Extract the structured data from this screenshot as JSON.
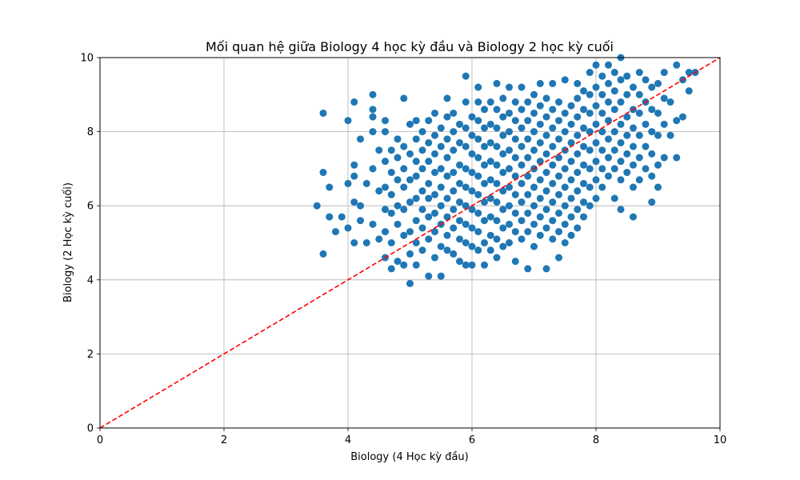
{
  "chart_data": {
    "type": "scatter",
    "title": "Mối quan hệ giữa Biology 4 học kỳ đầu và Biology 2 học kỳ cuối",
    "xlabel": "Biology (4 Học kỳ đầu)",
    "ylabel": "Biology (2 Học kỳ cuối)",
    "xlim": [
      0,
      10
    ],
    "ylim": [
      0,
      10
    ],
    "xticks": [
      "0",
      "2",
      "4",
      "6",
      "8",
      "10"
    ],
    "yticks": [
      "0",
      "2",
      "4",
      "6",
      "8",
      "10"
    ],
    "grid": true,
    "point_color": "#1f77b4",
    "reference_line": {
      "style": "dashed",
      "color": "#ff0000",
      "from": [
        0,
        0
      ],
      "to": [
        10,
        10
      ]
    },
    "points": [
      [
        3.5,
        6.0
      ],
      [
        3.6,
        4.7
      ],
      [
        3.6,
        6.9
      ],
      [
        3.6,
        8.5
      ],
      [
        3.7,
        5.7
      ],
      [
        3.7,
        6.5
      ],
      [
        3.8,
        5.3
      ],
      [
        3.9,
        5.7
      ],
      [
        4.0,
        5.4
      ],
      [
        4.0,
        6.6
      ],
      [
        4.0,
        8.3
      ],
      [
        4.1,
        5.0
      ],
      [
        4.1,
        6.1
      ],
      [
        4.1,
        6.8
      ],
      [
        4.1,
        7.1
      ],
      [
        4.1,
        8.8
      ],
      [
        4.2,
        5.6
      ],
      [
        4.2,
        6.0
      ],
      [
        4.2,
        7.8
      ],
      [
        4.3,
        5.0
      ],
      [
        4.3,
        6.6
      ],
      [
        4.4,
        5.5
      ],
      [
        4.4,
        7.0
      ],
      [
        4.4,
        8.0
      ],
      [
        4.4,
        8.4
      ],
      [
        4.4,
        8.6
      ],
      [
        4.4,
        9.0
      ],
      [
        4.5,
        5.1
      ],
      [
        4.5,
        6.4
      ],
      [
        4.5,
        7.5
      ],
      [
        4.6,
        4.6
      ],
      [
        4.6,
        5.3
      ],
      [
        4.6,
        5.9
      ],
      [
        4.6,
        6.5
      ],
      [
        4.6,
        7.2
      ],
      [
        4.6,
        8.0
      ],
      [
        4.6,
        8.3
      ],
      [
        4.7,
        4.3
      ],
      [
        4.7,
        5.0
      ],
      [
        4.7,
        5.8
      ],
      [
        4.7,
        6.3
      ],
      [
        4.7,
        6.9
      ],
      [
        4.7,
        7.5
      ],
      [
        4.8,
        4.5
      ],
      [
        4.8,
        5.5
      ],
      [
        4.8,
        6.0
      ],
      [
        4.8,
        6.7
      ],
      [
        4.8,
        7.3
      ],
      [
        4.8,
        7.8
      ],
      [
        4.9,
        4.4
      ],
      [
        4.9,
        5.2
      ],
      [
        4.9,
        5.9
      ],
      [
        4.9,
        6.5
      ],
      [
        4.9,
        7.0
      ],
      [
        4.9,
        7.6
      ],
      [
        4.9,
        8.9
      ],
      [
        5.0,
        3.9
      ],
      [
        5.0,
        4.7
      ],
      [
        5.0,
        5.3
      ],
      [
        5.0,
        6.1
      ],
      [
        5.0,
        6.7
      ],
      [
        5.0,
        7.4
      ],
      [
        5.0,
        8.2
      ],
      [
        5.1,
        4.4
      ],
      [
        5.1,
        5.0
      ],
      [
        5.1,
        5.6
      ],
      [
        5.1,
        6.2
      ],
      [
        5.1,
        6.8
      ],
      [
        5.1,
        7.2
      ],
      [
        5.1,
        7.8
      ],
      [
        5.1,
        8.3
      ],
      [
        5.2,
        4.8
      ],
      [
        5.2,
        5.4
      ],
      [
        5.2,
        5.9
      ],
      [
        5.2,
        6.4
      ],
      [
        5.2,
        7.0
      ],
      [
        5.2,
        7.5
      ],
      [
        5.2,
        8.0
      ],
      [
        5.3,
        4.1
      ],
      [
        5.3,
        5.1
      ],
      [
        5.3,
        5.7
      ],
      [
        5.3,
        6.2
      ],
      [
        5.3,
        6.6
      ],
      [
        5.3,
        7.2
      ],
      [
        5.3,
        7.7
      ],
      [
        5.3,
        8.3
      ],
      [
        5.4,
        4.6
      ],
      [
        5.4,
        5.3
      ],
      [
        5.4,
        5.8
      ],
      [
        5.4,
        6.3
      ],
      [
        5.4,
        6.9
      ],
      [
        5.4,
        7.4
      ],
      [
        5.4,
        7.9
      ],
      [
        5.4,
        8.5
      ],
      [
        5.5,
        4.1
      ],
      [
        5.5,
        4.9
      ],
      [
        5.5,
        5.5
      ],
      [
        5.5,
        6.0
      ],
      [
        5.5,
        6.5
      ],
      [
        5.5,
        7.0
      ],
      [
        5.5,
        7.6
      ],
      [
        5.5,
        8.1
      ],
      [
        5.6,
        4.8
      ],
      [
        5.6,
        5.2
      ],
      [
        5.6,
        5.7
      ],
      [
        5.6,
        6.2
      ],
      [
        5.6,
        6.8
      ],
      [
        5.6,
        7.3
      ],
      [
        5.6,
        7.8
      ],
      [
        5.6,
        8.4
      ],
      [
        5.6,
        8.9
      ],
      [
        5.7,
        4.7
      ],
      [
        5.7,
        5.4
      ],
      [
        5.7,
        5.9
      ],
      [
        5.7,
        6.4
      ],
      [
        5.7,
        6.9
      ],
      [
        5.7,
        7.5
      ],
      [
        5.7,
        8.0
      ],
      [
        5.7,
        8.5
      ],
      [
        5.8,
        4.5
      ],
      [
        5.8,
        5.1
      ],
      [
        5.8,
        5.6
      ],
      [
        5.8,
        6.1
      ],
      [
        5.8,
        6.6
      ],
      [
        5.8,
        7.1
      ],
      [
        5.8,
        7.7
      ],
      [
        5.8,
        8.2
      ],
      [
        5.9,
        4.4
      ],
      [
        5.9,
        5.0
      ],
      [
        5.9,
        5.5
      ],
      [
        5.9,
        6.0
      ],
      [
        5.9,
        6.5
      ],
      [
        5.9,
        7.0
      ],
      [
        5.9,
        7.6
      ],
      [
        5.9,
        8.1
      ],
      [
        5.9,
        8.8
      ],
      [
        5.9,
        9.5
      ],
      [
        6.0,
        4.4
      ],
      [
        6.0,
        4.9
      ],
      [
        6.0,
        5.4
      ],
      [
        6.0,
        5.9
      ],
      [
        6.0,
        6.4
      ],
      [
        6.0,
        6.9
      ],
      [
        6.0,
        7.4
      ],
      [
        6.0,
        7.9
      ],
      [
        6.0,
        8.4
      ],
      [
        6.1,
        4.8
      ],
      [
        6.1,
        5.3
      ],
      [
        6.1,
        5.8
      ],
      [
        6.1,
        6.3
      ],
      [
        6.1,
        6.8
      ],
      [
        6.1,
        7.3
      ],
      [
        6.1,
        7.8
      ],
      [
        6.1,
        8.3
      ],
      [
        6.1,
        8.8
      ],
      [
        6.1,
        9.2
      ],
      [
        6.2,
        4.4
      ],
      [
        6.2,
        5.0
      ],
      [
        6.2,
        5.6
      ],
      [
        6.2,
        6.1
      ],
      [
        6.2,
        6.6
      ],
      [
        6.2,
        7.1
      ],
      [
        6.2,
        7.6
      ],
      [
        6.2,
        8.1
      ],
      [
        6.2,
        8.6
      ],
      [
        6.3,
        4.8
      ],
      [
        6.3,
        5.2
      ],
      [
        6.3,
        5.7
      ],
      [
        6.3,
        6.2
      ],
      [
        6.3,
        6.7
      ],
      [
        6.3,
        7.2
      ],
      [
        6.3,
        7.7
      ],
      [
        6.3,
        8.2
      ],
      [
        6.3,
        8.8
      ],
      [
        6.4,
        4.6
      ],
      [
        6.4,
        5.1
      ],
      [
        6.4,
        5.6
      ],
      [
        6.4,
        6.1
      ],
      [
        6.4,
        6.6
      ],
      [
        6.4,
        7.1
      ],
      [
        6.4,
        7.6
      ],
      [
        6.4,
        8.1
      ],
      [
        6.4,
        8.6
      ],
      [
        6.4,
        9.3
      ],
      [
        6.5,
        4.9
      ],
      [
        6.5,
        5.4
      ],
      [
        6.5,
        5.9
      ],
      [
        6.5,
        6.4
      ],
      [
        6.5,
        6.9
      ],
      [
        6.5,
        7.4
      ],
      [
        6.5,
        7.9
      ],
      [
        6.5,
        8.4
      ],
      [
        6.5,
        8.9
      ],
      [
        6.6,
        5.0
      ],
      [
        6.6,
        5.5
      ],
      [
        6.6,
        6.0
      ],
      [
        6.6,
        6.5
      ],
      [
        6.6,
        7.0
      ],
      [
        6.6,
        7.5
      ],
      [
        6.6,
        8.0
      ],
      [
        6.6,
        8.5
      ],
      [
        6.6,
        9.2
      ],
      [
        6.7,
        4.5
      ],
      [
        6.7,
        5.3
      ],
      [
        6.7,
        5.8
      ],
      [
        6.7,
        6.3
      ],
      [
        6.7,
        6.8
      ],
      [
        6.7,
        7.3
      ],
      [
        6.7,
        7.8
      ],
      [
        6.7,
        8.3
      ],
      [
        6.7,
        8.8
      ],
      [
        6.8,
        5.1
      ],
      [
        6.8,
        5.6
      ],
      [
        6.8,
        6.1
      ],
      [
        6.8,
        6.6
      ],
      [
        6.8,
        7.1
      ],
      [
        6.8,
        7.6
      ],
      [
        6.8,
        8.1
      ],
      [
        6.8,
        8.6
      ],
      [
        6.8,
        9.2
      ],
      [
        6.9,
        4.3
      ],
      [
        6.9,
        5.3
      ],
      [
        6.9,
        5.8
      ],
      [
        6.9,
        6.3
      ],
      [
        6.9,
        6.8
      ],
      [
        6.9,
        7.3
      ],
      [
        6.9,
        7.8
      ],
      [
        6.9,
        8.3
      ],
      [
        6.9,
        8.8
      ],
      [
        7.0,
        4.9
      ],
      [
        7.0,
        5.5
      ],
      [
        7.0,
        6.0
      ],
      [
        7.0,
        6.5
      ],
      [
        7.0,
        7.0
      ],
      [
        7.0,
        7.5
      ],
      [
        7.0,
        8.0
      ],
      [
        7.0,
        8.5
      ],
      [
        7.0,
        9.0
      ],
      [
        7.1,
        5.2
      ],
      [
        7.1,
        5.7
      ],
      [
        7.1,
        6.2
      ],
      [
        7.1,
        6.7
      ],
      [
        7.1,
        7.2
      ],
      [
        7.1,
        7.7
      ],
      [
        7.1,
        8.2
      ],
      [
        7.1,
        8.7
      ],
      [
        7.1,
        9.3
      ],
      [
        7.2,
        4.3
      ],
      [
        7.2,
        5.4
      ],
      [
        7.2,
        5.9
      ],
      [
        7.2,
        6.4
      ],
      [
        7.2,
        6.9
      ],
      [
        7.2,
        7.4
      ],
      [
        7.2,
        7.9
      ],
      [
        7.2,
        8.4
      ],
      [
        7.2,
        8.9
      ],
      [
        7.3,
        5.1
      ],
      [
        7.3,
        5.6
      ],
      [
        7.3,
        6.1
      ],
      [
        7.3,
        6.6
      ],
      [
        7.3,
        7.1
      ],
      [
        7.3,
        7.6
      ],
      [
        7.3,
        8.1
      ],
      [
        7.3,
        8.6
      ],
      [
        7.3,
        9.3
      ],
      [
        7.4,
        4.6
      ],
      [
        7.4,
        5.3
      ],
      [
        7.4,
        5.8
      ],
      [
        7.4,
        6.3
      ],
      [
        7.4,
        6.8
      ],
      [
        7.4,
        7.3
      ],
      [
        7.4,
        7.8
      ],
      [
        7.4,
        8.3
      ],
      [
        7.4,
        8.8
      ],
      [
        7.5,
        5.0
      ],
      [
        7.5,
        5.5
      ],
      [
        7.5,
        6.0
      ],
      [
        7.5,
        6.5
      ],
      [
        7.5,
        7.0
      ],
      [
        7.5,
        7.5
      ],
      [
        7.5,
        8.0
      ],
      [
        7.5,
        8.5
      ],
      [
        7.5,
        9.4
      ],
      [
        7.6,
        5.2
      ],
      [
        7.6,
        5.7
      ],
      [
        7.6,
        6.2
      ],
      [
        7.6,
        6.7
      ],
      [
        7.6,
        7.2
      ],
      [
        7.6,
        7.7
      ],
      [
        7.6,
        8.2
      ],
      [
        7.6,
        8.7
      ],
      [
        7.7,
        5.4
      ],
      [
        7.7,
        5.9
      ],
      [
        7.7,
        6.4
      ],
      [
        7.7,
        6.9
      ],
      [
        7.7,
        7.4
      ],
      [
        7.7,
        7.9
      ],
      [
        7.7,
        8.4
      ],
      [
        7.7,
        8.9
      ],
      [
        7.7,
        9.3
      ],
      [
        7.8,
        5.7
      ],
      [
        7.8,
        6.1
      ],
      [
        7.8,
        6.6
      ],
      [
        7.8,
        7.1
      ],
      [
        7.8,
        7.6
      ],
      [
        7.8,
        8.1
      ],
      [
        7.8,
        8.6
      ],
      [
        7.8,
        9.1
      ],
      [
        7.9,
        6.0
      ],
      [
        7.9,
        6.5
      ],
      [
        7.9,
        7.0
      ],
      [
        7.9,
        7.5
      ],
      [
        7.9,
        8.0
      ],
      [
        7.9,
        8.5
      ],
      [
        7.9,
        9.0
      ],
      [
        7.9,
        9.6
      ],
      [
        8.0,
        6.2
      ],
      [
        8.0,
        6.7
      ],
      [
        8.0,
        7.2
      ],
      [
        8.0,
        7.7
      ],
      [
        8.0,
        8.2
      ],
      [
        8.0,
        8.7
      ],
      [
        8.0,
        9.2
      ],
      [
        8.0,
        9.8
      ],
      [
        8.1,
        6.5
      ],
      [
        8.1,
        7.0
      ],
      [
        8.1,
        7.5
      ],
      [
        8.1,
        8.0
      ],
      [
        8.1,
        8.5
      ],
      [
        8.1,
        9.0
      ],
      [
        8.1,
        9.5
      ],
      [
        8.2,
        6.8
      ],
      [
        8.2,
        7.3
      ],
      [
        8.2,
        7.8
      ],
      [
        8.2,
        8.3
      ],
      [
        8.2,
        8.8
      ],
      [
        8.2,
        9.3
      ],
      [
        8.2,
        9.8
      ],
      [
        8.3,
        6.2
      ],
      [
        8.3,
        7.0
      ],
      [
        8.3,
        7.5
      ],
      [
        8.3,
        8.0
      ],
      [
        8.3,
        8.6
      ],
      [
        8.3,
        9.1
      ],
      [
        8.3,
        9.6
      ],
      [
        8.4,
        5.9
      ],
      [
        8.4,
        6.7
      ],
      [
        8.4,
        7.2
      ],
      [
        8.4,
        7.7
      ],
      [
        8.4,
        8.2
      ],
      [
        8.4,
        8.8
      ],
      [
        8.4,
        9.4
      ],
      [
        8.4,
        10.0
      ],
      [
        8.5,
        6.9
      ],
      [
        8.5,
        7.4
      ],
      [
        8.5,
        7.9
      ],
      [
        8.5,
        8.4
      ],
      [
        8.5,
        9.0
      ],
      [
        8.5,
        9.5
      ],
      [
        8.6,
        5.7
      ],
      [
        8.6,
        6.5
      ],
      [
        8.6,
        7.1
      ],
      [
        8.6,
        7.6
      ],
      [
        8.6,
        8.1
      ],
      [
        8.6,
        8.6
      ],
      [
        8.6,
        9.2
      ],
      [
        8.7,
        6.7
      ],
      [
        8.7,
        7.3
      ],
      [
        8.7,
        7.9
      ],
      [
        8.7,
        8.5
      ],
      [
        8.7,
        9.0
      ],
      [
        8.7,
        9.6
      ],
      [
        8.8,
        7.0
      ],
      [
        8.8,
        7.6
      ],
      [
        8.8,
        8.2
      ],
      [
        8.8,
        8.8
      ],
      [
        8.8,
        9.4
      ],
      [
        8.9,
        6.1
      ],
      [
        8.9,
        6.8
      ],
      [
        8.9,
        7.4
      ],
      [
        8.9,
        8.0
      ],
      [
        8.9,
        8.6
      ],
      [
        8.9,
        9.2
      ],
      [
        9.0,
        6.5
      ],
      [
        9.0,
        7.1
      ],
      [
        9.0,
        7.9
      ],
      [
        9.0,
        8.5
      ],
      [
        9.0,
        9.3
      ],
      [
        9.1,
        7.3
      ],
      [
        9.1,
        8.2
      ],
      [
        9.1,
        8.9
      ],
      [
        9.1,
        9.6
      ],
      [
        9.2,
        7.9
      ],
      [
        9.2,
        8.8
      ],
      [
        9.3,
        7.3
      ],
      [
        9.3,
        8.3
      ],
      [
        9.3,
        9.8
      ],
      [
        9.4,
        8.4
      ],
      [
        9.4,
        9.4
      ],
      [
        9.5,
        9.1
      ],
      [
        9.5,
        9.6
      ],
      [
        9.6,
        9.6
      ]
    ]
  }
}
